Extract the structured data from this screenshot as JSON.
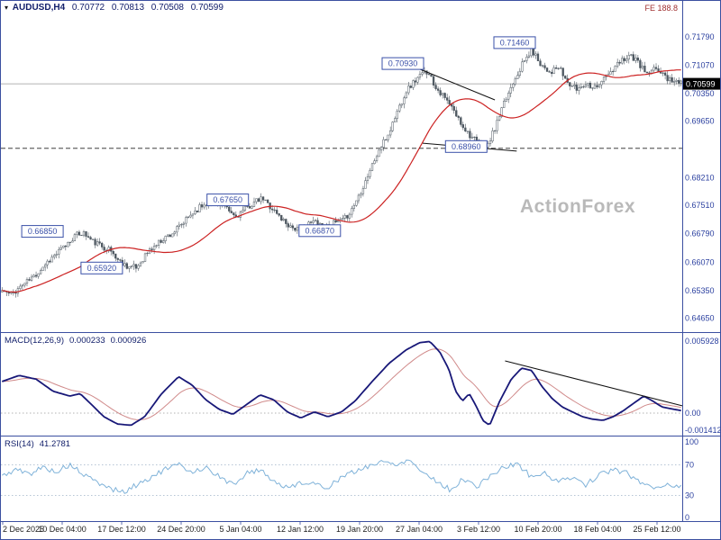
{
  "header": {
    "marker": "▾",
    "symbol": "AUDUSD,H4",
    "open": "0.70772",
    "high": "0.70813",
    "low": "0.70508",
    "close": "0.70599",
    "corner_text": "FE 188.8"
  },
  "watermark": "ActionForex",
  "macd_panel": {
    "label": "MACD(12,26,9)",
    "value1": "0.000233",
    "value2": "0.000926"
  },
  "rsi_panel": {
    "label": "RSI(14)",
    "value": "41.2781"
  },
  "colors": {
    "panel_border": "#3b4fa0",
    "axis_text": "#2a3f9f",
    "candle": "#4e5861",
    "ma_line": "#cc2222",
    "macd_line": "#181878",
    "macd_signal": "#d08a8a",
    "rsi_line": "#7fb2d9",
    "current_price_bg": "#000000",
    "annotation": "#3a50a8",
    "watermark": "#b9b9b9"
  },
  "chart_data": [
    {
      "type": "candlestick",
      "title": "AUDUSD H4 price",
      "x_labels": [
        "2 Dec 2025",
        "10 Dec 04:00",
        "17 Dec 12:00",
        "24 Dec 20:00",
        "5 Jan 04:00",
        "12 Jan 12:00",
        "19 Jan 20:00",
        "27 Jan 04:00",
        "3 Feb 12:00",
        "10 Feb 20:00",
        "18 Feb 04:00",
        "25 Feb 12:00"
      ],
      "y_ticks": [
        "0.71790",
        "0.71070",
        "0.70350",
        "0.69650",
        "0.68210",
        "0.67510",
        "0.66790",
        "0.66070",
        "0.65350",
        "0.64650"
      ],
      "ylim": [
        0.645,
        0.7215
      ],
      "current_price": 0.70599,
      "current_price_label": "0.70599",
      "dashed_level": 0.6896,
      "price_path": [
        [
          0.0,
          0.6535
        ],
        [
          0.013,
          0.6524
        ],
        [
          0.03,
          0.6549
        ],
        [
          0.048,
          0.6572
        ],
        [
          0.066,
          0.6607
        ],
        [
          0.08,
          0.6628
        ],
        [
          0.093,
          0.6648
        ],
        [
          0.106,
          0.6672
        ],
        [
          0.119,
          0.6683
        ],
        [
          0.132,
          0.6661
        ],
        [
          0.146,
          0.6648
        ],
        [
          0.159,
          0.6638
        ],
        [
          0.172,
          0.661
        ],
        [
          0.185,
          0.6597
        ],
        [
          0.198,
          0.6592
        ],
        [
          0.212,
          0.6628
        ],
        [
          0.225,
          0.6648
        ],
        [
          0.238,
          0.6668
        ],
        [
          0.252,
          0.6682
        ],
        [
          0.265,
          0.6702
        ],
        [
          0.278,
          0.6728
        ],
        [
          0.291,
          0.6747
        ],
        [
          0.305,
          0.676
        ],
        [
          0.312,
          0.6765
        ],
        [
          0.325,
          0.6748
        ],
        [
          0.338,
          0.673
        ],
        [
          0.344,
          0.6722
        ],
        [
          0.357,
          0.674
        ],
        [
          0.37,
          0.6757
        ],
        [
          0.384,
          0.6768
        ],
        [
          0.397,
          0.6745
        ],
        [
          0.41,
          0.672
        ],
        [
          0.423,
          0.67
        ],
        [
          0.437,
          0.6688
        ],
        [
          0.45,
          0.6702
        ],
        [
          0.463,
          0.6712
        ],
        [
          0.476,
          0.6696
        ],
        [
          0.49,
          0.6706
        ],
        [
          0.503,
          0.6713
        ],
        [
          0.516,
          0.6744
        ],
        [
          0.529,
          0.679
        ],
        [
          0.542,
          0.6842
        ],
        [
          0.556,
          0.6893
        ],
        [
          0.569,
          0.6932
        ],
        [
          0.582,
          0.699
        ],
        [
          0.595,
          0.7042
        ],
        [
          0.608,
          0.7068
        ],
        [
          0.62,
          0.7086
        ],
        [
          0.628,
          0.7093
        ],
        [
          0.635,
          0.7062
        ],
        [
          0.648,
          0.7032
        ],
        [
          0.661,
          0.7002
        ],
        [
          0.675,
          0.6962
        ],
        [
          0.688,
          0.6932
        ],
        [
          0.701,
          0.6907
        ],
        [
          0.714,
          0.6897
        ],
        [
          0.727,
          0.6952
        ],
        [
          0.74,
          0.7012
        ],
        [
          0.754,
          0.7072
        ],
        [
          0.767,
          0.7112
        ],
        [
          0.78,
          0.7146
        ],
        [
          0.793,
          0.7112
        ],
        [
          0.807,
          0.709
        ],
        [
          0.82,
          0.71
        ],
        [
          0.833,
          0.7062
        ],
        [
          0.846,
          0.7046
        ],
        [
          0.86,
          0.7062
        ],
        [
          0.873,
          0.7052
        ],
        [
          0.886,
          0.7072
        ],
        [
          0.899,
          0.7092
        ],
        [
          0.912,
          0.712
        ],
        [
          0.925,
          0.7134
        ],
        [
          0.938,
          0.711
        ],
        [
          0.951,
          0.7082
        ],
        [
          0.964,
          0.71
        ],
        [
          0.978,
          0.7076
        ],
        [
          1.0,
          0.70599
        ]
      ],
      "annotations": [
        {
          "label": "0.66850",
          "x": 0.061,
          "price": 0.6685,
          "dy": 0
        },
        {
          "label": "0.65920",
          "x": 0.148,
          "price": 0.6592,
          "dy": 0
        },
        {
          "label": "0.67650",
          "x": 0.333,
          "price": 0.6765,
          "dy": 0
        },
        {
          "label": "0.66870",
          "x": 0.468,
          "price": 0.6687,
          "dy": 0
        },
        {
          "label": "0.70930",
          "x": 0.59,
          "price": 0.7093,
          "dy": -8
        },
        {
          "label": "0.68960",
          "x": 0.683,
          "price": 0.6896,
          "dy": -2
        },
        {
          "label": "0.71460",
          "x": 0.754,
          "price": 0.7146,
          "dy": -8
        }
      ],
      "trendlines": [
        {
          "x1": 0.602,
          "p1": 0.7106,
          "x2": 0.725,
          "p2": 0.7019
        },
        {
          "x1": 0.619,
          "p1": 0.6909,
          "x2": 0.757,
          "p2": 0.6889
        }
      ]
    },
    {
      "type": "line",
      "title": "MACD(12,26,9)",
      "y_ticks": [
        "0.005928",
        "0.00",
        "-0.001412"
      ],
      "ylim": [
        -0.0018,
        0.0062
      ],
      "current": [
        0.000233,
        0.000926
      ],
      "trendline": {
        "x1": 0.74,
        "v1": 0.0043,
        "x2": 1.0,
        "v2": 0.0006
      },
      "path": [
        [
          0.0,
          0.0026
        ],
        [
          0.025,
          0.0031
        ],
        [
          0.05,
          0.0028
        ],
        [
          0.075,
          0.0018
        ],
        [
          0.1,
          0.0014
        ],
        [
          0.115,
          0.0016
        ],
        [
          0.13,
          0.0008
        ],
        [
          0.15,
          -0.0003
        ],
        [
          0.17,
          -0.0009
        ],
        [
          0.19,
          -0.001
        ],
        [
          0.21,
          -0.0003
        ],
        [
          0.235,
          0.0016
        ],
        [
          0.26,
          0.003
        ],
        [
          0.28,
          0.0023
        ],
        [
          0.3,
          0.0011
        ],
        [
          0.32,
          0.0003
        ],
        [
          0.34,
          -0.0001
        ],
        [
          0.36,
          0.0007
        ],
        [
          0.38,
          0.0015
        ],
        [
          0.4,
          0.0011
        ],
        [
          0.42,
          0.0001
        ],
        [
          0.44,
          -0.0004
        ],
        [
          0.46,
          0.0001
        ],
        [
          0.48,
          -0.0003
        ],
        [
          0.5,
          0.0001
        ],
        [
          0.52,
          0.001
        ],
        [
          0.545,
          0.0026
        ],
        [
          0.57,
          0.0041
        ],
        [
          0.595,
          0.0052
        ],
        [
          0.615,
          0.0058
        ],
        [
          0.63,
          0.0059
        ],
        [
          0.645,
          0.005
        ],
        [
          0.658,
          0.0036
        ],
        [
          0.668,
          0.0018
        ],
        [
          0.678,
          0.001
        ],
        [
          0.688,
          0.0016
        ],
        [
          0.698,
          0.0006
        ],
        [
          0.708,
          -0.0006
        ],
        [
          0.718,
          -0.001
        ],
        [
          0.733,
          0.001
        ],
        [
          0.75,
          0.0028
        ],
        [
          0.765,
          0.0037
        ],
        [
          0.78,
          0.0035
        ],
        [
          0.795,
          0.0022
        ],
        [
          0.81,
          0.0012
        ],
        [
          0.825,
          0.0005
        ],
        [
          0.84,
          0.0001
        ],
        [
          0.855,
          -0.0003
        ],
        [
          0.87,
          -0.0005
        ],
        [
          0.885,
          -0.0006
        ],
        [
          0.9,
          -0.0003
        ],
        [
          0.915,
          0.0002
        ],
        [
          0.93,
          0.0008
        ],
        [
          0.945,
          0.0014
        ],
        [
          0.958,
          0.001
        ],
        [
          0.972,
          0.0005
        ],
        [
          1.0,
          0.0002
        ]
      ]
    },
    {
      "type": "line",
      "title": "RSI(14)",
      "y_ticks": [
        "100",
        "70",
        "30",
        "0"
      ],
      "levels": [
        70,
        30
      ],
      "ylim": [
        0,
        100
      ],
      "current": 41.2781,
      "path": [
        [
          0.0,
          55
        ],
        [
          0.02,
          64
        ],
        [
          0.04,
          58
        ],
        [
          0.06,
          67
        ],
        [
          0.08,
          61
        ],
        [
          0.1,
          70
        ],
        [
          0.12,
          57
        ],
        [
          0.14,
          47
        ],
        [
          0.16,
          39
        ],
        [
          0.18,
          34
        ],
        [
          0.2,
          45
        ],
        [
          0.22,
          54
        ],
        [
          0.24,
          64
        ],
        [
          0.26,
          70
        ],
        [
          0.28,
          61
        ],
        [
          0.3,
          67
        ],
        [
          0.32,
          54
        ],
        [
          0.34,
          44
        ],
        [
          0.36,
          59
        ],
        [
          0.38,
          64
        ],
        [
          0.4,
          49
        ],
        [
          0.42,
          39
        ],
        [
          0.44,
          48
        ],
        [
          0.46,
          44
        ],
        [
          0.48,
          41
        ],
        [
          0.5,
          54
        ],
        [
          0.52,
          61
        ],
        [
          0.54,
          69
        ],
        [
          0.56,
          74
        ],
        [
          0.58,
          71
        ],
        [
          0.6,
          77
        ],
        [
          0.62,
          60
        ],
        [
          0.64,
          49
        ],
        [
          0.66,
          37
        ],
        [
          0.68,
          52
        ],
        [
          0.7,
          41
        ],
        [
          0.72,
          57
        ],
        [
          0.74,
          67
        ],
        [
          0.76,
          71
        ],
        [
          0.78,
          54
        ],
        [
          0.8,
          59
        ],
        [
          0.82,
          47
        ],
        [
          0.84,
          55
        ],
        [
          0.86,
          44
        ],
        [
          0.88,
          57
        ],
        [
          0.9,
          64
        ],
        [
          0.92,
          59
        ],
        [
          0.94,
          47
        ],
        [
          0.96,
          41
        ],
        [
          0.98,
          44
        ],
        [
          1.0,
          41.28
        ]
      ]
    }
  ]
}
